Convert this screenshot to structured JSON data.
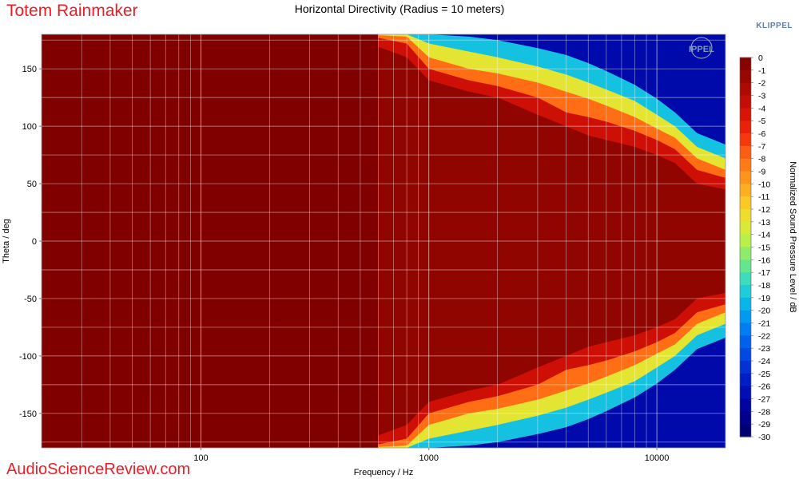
{
  "header": {
    "brand_title": "Totem Rainmaker",
    "logo_text": "KLIPPEL",
    "watermark": "AudioScienceReview.com",
    "inset_logo_text": "IPPEL"
  },
  "colors": {
    "brand_red": "#ee1c24",
    "klippel_blue": "#5b7fa6"
  },
  "chart_data": {
    "type": "heatmap",
    "title": "Horizontal Directivity (Radius = 10 meters)",
    "xlabel": "Frequency / Hz",
    "ylabel": "Theta / deg",
    "x_scale": "log",
    "xlim": [
      20,
      20000
    ],
    "ylim": [
      -180,
      180
    ],
    "x_ticks": [
      100,
      1000,
      10000
    ],
    "x_tick_labels": [
      "100",
      "1000",
      "10000"
    ],
    "y_ticks": [
      150,
      100,
      50,
      0,
      -50,
      -100,
      -150
    ],
    "y_tick_labels": [
      "150",
      "100",
      "50",
      "0",
      "-50",
      "-100",
      "-150"
    ],
    "grid": true,
    "colorbar": {
      "label": "Normalized Sound Pressure Level / dB",
      "min": -30,
      "max": 0,
      "ticks": [
        0,
        -1,
        -2,
        -3,
        -4,
        -5,
        -6,
        -7,
        -8,
        -9,
        -10,
        -11,
        -12,
        -13,
        -14,
        -15,
        -16,
        -17,
        -18,
        -19,
        -20,
        -21,
        -22,
        -23,
        -24,
        -25,
        -26,
        -27,
        -28,
        -29,
        -30
      ],
      "position": "right"
    },
    "beamwidth_contours": {
      "frequencies_hz": [
        20,
        100,
        500,
        800,
        1000,
        1500,
        2000,
        3000,
        4000,
        5000,
        6000,
        8000,
        10000,
        12000,
        15000,
        20000
      ],
      "minus3db_theta_deg": [
        180,
        180,
        175,
        160,
        140,
        130,
        125,
        110,
        100,
        92,
        88,
        82,
        75,
        68,
        50,
        45
      ],
      "minus6db_theta_deg": [
        180,
        180,
        180,
        172,
        150,
        140,
        135,
        125,
        112,
        108,
        104,
        96,
        88,
        80,
        62,
        55
      ],
      "minus10db_theta_deg": [
        180,
        180,
        180,
        178,
        160,
        150,
        146,
        138,
        130,
        124,
        118,
        108,
        98,
        90,
        72,
        62
      ],
      "minus15db_theta_deg": [
        180,
        180,
        180,
        180,
        172,
        165,
        160,
        152,
        145,
        138,
        132,
        122,
        110,
        100,
        82,
        72
      ],
      "minus22db_theta_deg": [
        180,
        180,
        180,
        180,
        180,
        178,
        175,
        168,
        162,
        155,
        148,
        136,
        124,
        112,
        94,
        84
      ]
    }
  }
}
